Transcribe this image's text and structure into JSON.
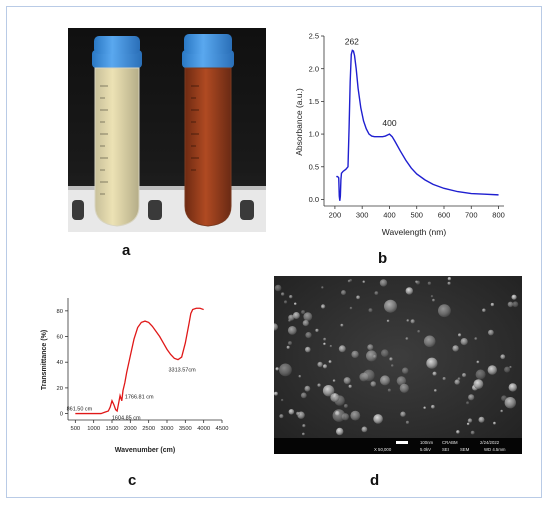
{
  "panels": {
    "a": {
      "letter": "a"
    },
    "b": {
      "letter": "b"
    },
    "c": {
      "letter": "c"
    },
    "d": {
      "letter": "d"
    }
  },
  "chart_data": [
    {
      "id": "b",
      "type": "line",
      "title": "",
      "xlabel": "Wavelength (nm)",
      "ylabel": "Absorbance (a.u.)",
      "xlim": [
        160,
        820
      ],
      "ylim": [
        -0.1,
        2.5
      ],
      "xticks": [
        "200",
        "300",
        "400",
        "500",
        "600",
        "700",
        "800"
      ],
      "yticks": [
        "0.0",
        "0.5",
        "1.0",
        "1.5",
        "2.0",
        "2.5"
      ],
      "grid": false,
      "series": [
        {
          "color": "#1f1fd0",
          "x": [
            205,
            210,
            214,
            216,
            218,
            220,
            222,
            224,
            230,
            240,
            248,
            252,
            256,
            260,
            264,
            268,
            272,
            278,
            285,
            295,
            305,
            315,
            325,
            335,
            345,
            355,
            365,
            375,
            385,
            395,
            400,
            410,
            420,
            440,
            460,
            480,
            500,
            530,
            560,
            600,
            650,
            700,
            750,
            800
          ],
          "y": [
            0.35,
            0.35,
            0.33,
            0.05,
            -0.02,
            0.05,
            0.3,
            0.4,
            0.43,
            0.46,
            0.5,
            1.1,
            1.8,
            2.22,
            2.28,
            2.27,
            2.2,
            2.0,
            1.7,
            1.4,
            1.2,
            1.08,
            1.0,
            0.97,
            0.96,
            0.96,
            0.96,
            0.96,
            0.97,
            0.99,
            1.0,
            0.96,
            0.89,
            0.74,
            0.6,
            0.48,
            0.39,
            0.3,
            0.23,
            0.17,
            0.12,
            0.09,
            0.08,
            0.07
          ]
        }
      ],
      "annotations": [
        {
          "text": "262",
          "x": 262,
          "y": 2.28
        },
        {
          "text": "400",
          "x": 400,
          "y": 1.0
        }
      ]
    },
    {
      "id": "c",
      "type": "line",
      "title": "",
      "xlabel": "Wavenumber (cm)",
      "ylabel": "Transmittance (%)",
      "xlim": [
        300,
        4500
      ],
      "ylim": [
        -5,
        90
      ],
      "xticks": [
        "500",
        "1000",
        "1500",
        "2000",
        "2500",
        "3000",
        "3500",
        "4000",
        "4500"
      ],
      "yticks": [
        "0",
        "20",
        "40",
        "60",
        "80"
      ],
      "grid": false,
      "series": [
        {
          "color": "#e01818",
          "x": [
            500,
            800,
            1000,
            1200,
            1300,
            1400,
            1450,
            1500,
            1550,
            1600,
            1640,
            1680,
            1720,
            1767,
            1800,
            1850,
            1900,
            2000,
            2100,
            2200,
            2300,
            2400,
            2500,
            2600,
            2700,
            2800,
            2900,
            3000,
            3100,
            3200,
            3300,
            3400,
            3500,
            3600,
            3650,
            3700,
            3800,
            3900,
            4000
          ],
          "y": [
            0,
            0,
            0,
            0,
            1,
            2,
            5,
            10,
            7,
            3,
            2,
            8,
            14,
            10,
            18,
            24,
            32,
            45,
            58,
            67,
            71,
            72,
            71,
            68,
            64,
            60,
            55,
            50,
            46,
            43,
            42,
            44,
            55,
            70,
            78,
            81,
            82,
            82,
            81
          ]
        }
      ],
      "annotations": [
        {
          "text": "861.50 cm",
          "x": 861.5,
          "y": 0
        },
        {
          "text": "1604.85 cm",
          "x": 1604.85,
          "y": 3
        },
        {
          "text": "1766.81 cm",
          "x": 1766.81,
          "y": 10
        },
        {
          "text": "3313.57cm",
          "x": 3313.57,
          "y": 42
        }
      ]
    }
  ],
  "sem": {
    "scale_bar": "100nm",
    "facility": "CRABM",
    "date": "2/24/2022",
    "magnification": "X 50,000",
    "voltage": "5.0kV",
    "detector": "SEI",
    "mode": "SEM",
    "wd": "WD 4.5mm"
  }
}
